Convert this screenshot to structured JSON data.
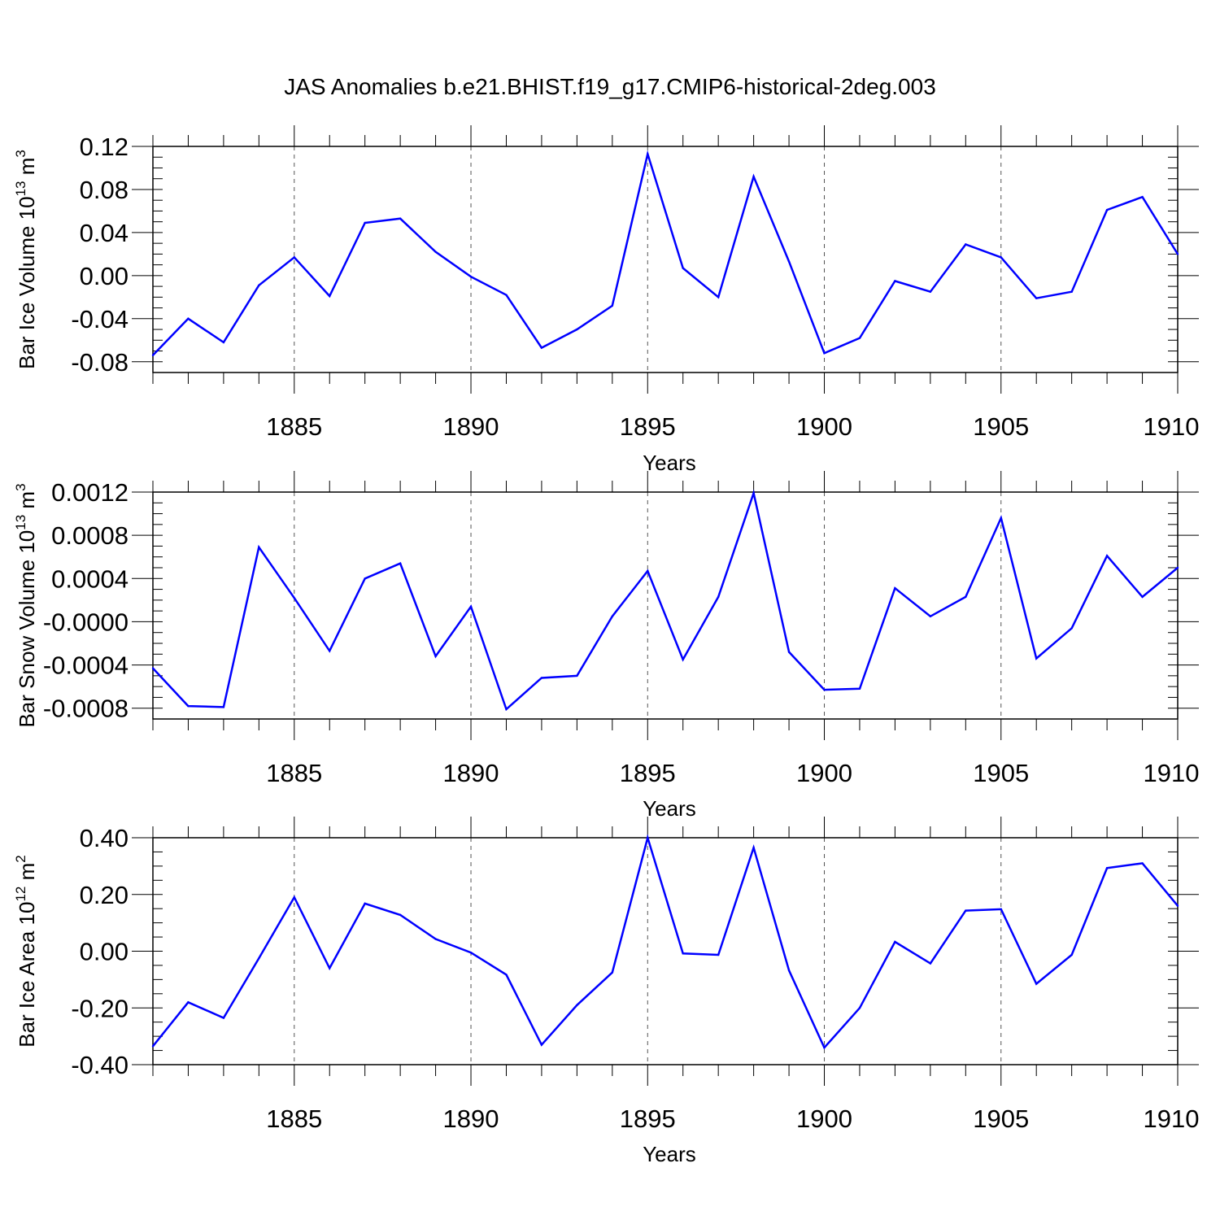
{
  "title": "JAS Anomalies b.e21.BHIST.f19_g17.CMIP6-historical-2deg.003",
  "colors": {
    "line": "#0000ff",
    "axis": "#000000",
    "grid": "#555555"
  },
  "chart_data": [
    {
      "type": "line",
      "ylabel_main": "Bar Ice Volume 10",
      "ylabel_exp": "13",
      "ylabel_unit": " m",
      "ylabel_unit_exp": "3",
      "xlabel": "Years",
      "xlim": [
        1881,
        1910
      ],
      "ylim": [
        -0.09,
        0.12
      ],
      "xticks": [
        1885,
        1890,
        1895,
        1900,
        1905,
        1910
      ],
      "xtick_labels": [
        "1885",
        "1890",
        "1895",
        "1900",
        "1905",
        "1910"
      ],
      "yticks": [
        0.12,
        0.08,
        0.04,
        0.0,
        -0.04,
        -0.08
      ],
      "ytick_labels": [
        "0.12",
        "0.08",
        "0.04",
        "0.00",
        "-0.04",
        "-0.08"
      ],
      "grid": "vertical dashed at major x ticks",
      "x": [
        1881,
        1882,
        1883,
        1884,
        1885,
        1886,
        1887,
        1888,
        1889,
        1890,
        1891,
        1892,
        1893,
        1894,
        1895,
        1896,
        1897,
        1898,
        1899,
        1900,
        1901,
        1902,
        1903,
        1904,
        1905,
        1906,
        1907,
        1908,
        1909,
        1910
      ],
      "values": [
        -0.074,
        -0.04,
        -0.062,
        -0.009,
        0.017,
        -0.019,
        0.049,
        0.053,
        0.022,
        -0.001,
        -0.018,
        -0.067,
        -0.05,
        -0.028,
        0.113,
        0.007,
        -0.02,
        0.092,
        0.013,
        -0.072,
        -0.058,
        -0.005,
        -0.015,
        0.029,
        0.017,
        -0.021,
        -0.015,
        0.061,
        0.073,
        0.02
      ]
    },
    {
      "type": "line",
      "ylabel_main": "Bar Snow Volume 10",
      "ylabel_exp": "13",
      "ylabel_unit": " m",
      "ylabel_unit_exp": "3",
      "xlabel": "Years",
      "xlim": [
        1881,
        1910
      ],
      "ylim": [
        -0.0009,
        0.0012
      ],
      "xticks": [
        1885,
        1890,
        1895,
        1900,
        1905,
        1910
      ],
      "xtick_labels": [
        "1885",
        "1890",
        "1895",
        "1900",
        "1905",
        "1910"
      ],
      "yticks": [
        0.0012,
        0.0008,
        0.0004,
        0.0,
        -0.0004,
        -0.0008
      ],
      "ytick_labels": [
        "0.0012",
        "0.0008",
        "0.0004",
        "-0.0000",
        "-0.0004",
        "-0.0008"
      ],
      "grid": "vertical dashed at major x ticks",
      "x": [
        1881,
        1882,
        1883,
        1884,
        1885,
        1886,
        1887,
        1888,
        1889,
        1890,
        1891,
        1892,
        1893,
        1894,
        1895,
        1896,
        1897,
        1898,
        1899,
        1900,
        1901,
        1902,
        1903,
        1904,
        1905,
        1906,
        1907,
        1908,
        1909,
        1910
      ],
      "values": [
        -0.00043,
        -0.00078,
        -0.00079,
        0.00069,
        0.00022,
        -0.00027,
        0.0004,
        0.00054,
        -0.00032,
        0.00014,
        -0.00081,
        -0.00052,
        -0.0005,
        5e-05,
        0.00047,
        -0.00035,
        0.00023,
        0.00119,
        -0.00028,
        -0.00063,
        -0.00062,
        0.00031,
        5e-05,
        0.00023,
        0.00096,
        -0.00034,
        -6e-05,
        0.00061,
        0.00023,
        0.0005
      ]
    },
    {
      "type": "line",
      "ylabel_main": "Bar Ice Area 10",
      "ylabel_exp": "12",
      "ylabel_unit": " m",
      "ylabel_unit_exp": "2",
      "xlabel": "Years",
      "xlim": [
        1881,
        1910
      ],
      "ylim": [
        -0.4,
        0.4
      ],
      "xticks": [
        1885,
        1890,
        1895,
        1900,
        1905,
        1910
      ],
      "xtick_labels": [
        "1885",
        "1890",
        "1895",
        "1900",
        "1905",
        "1910"
      ],
      "yticks": [
        0.4,
        0.2,
        0.0,
        -0.2,
        -0.4
      ],
      "ytick_labels": [
        "0.40",
        "0.20",
        "0.00",
        "-0.20",
        "-0.40"
      ],
      "grid": "vertical dashed at major x ticks",
      "x": [
        1881,
        1882,
        1883,
        1884,
        1885,
        1886,
        1887,
        1888,
        1889,
        1890,
        1891,
        1892,
        1893,
        1894,
        1895,
        1896,
        1897,
        1898,
        1899,
        1900,
        1901,
        1902,
        1903,
        1904,
        1905,
        1906,
        1907,
        1908,
        1909,
        1910
      ],
      "values": [
        -0.335,
        -0.18,
        -0.235,
        -0.025,
        0.19,
        -0.06,
        0.168,
        0.128,
        0.043,
        -0.005,
        -0.083,
        -0.33,
        -0.19,
        -0.075,
        0.4,
        -0.008,
        -0.013,
        0.365,
        -0.068,
        -0.34,
        -0.2,
        0.033,
        -0.043,
        0.143,
        0.148,
        -0.115,
        -0.013,
        0.293,
        0.31,
        0.16
      ]
    }
  ]
}
